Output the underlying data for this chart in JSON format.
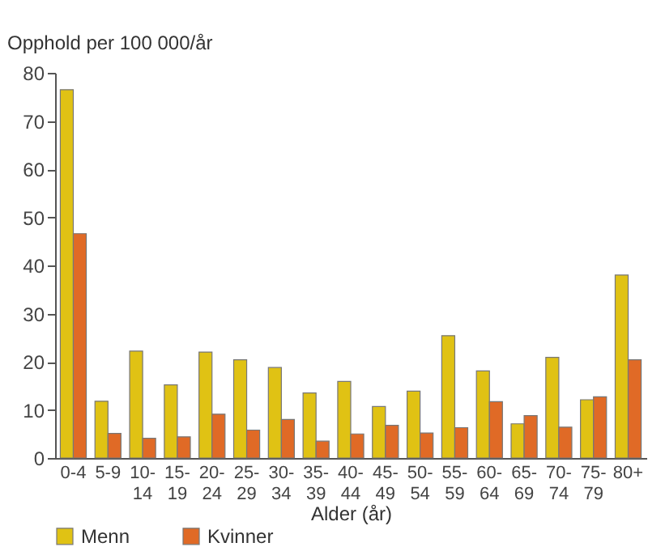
{
  "chart_data": {
    "type": "bar",
    "xlabel": "Alder (år)",
    "ylabel": "Opphold per 100 000/år",
    "categories": [
      "0-4",
      "5-9",
      "10-\n14",
      "15-\n19",
      "20-\n24",
      "25-\n29",
      "30-\n34",
      "35-\n39",
      "40-\n44",
      "45-\n49",
      "50-\n54",
      "55-\n59",
      "60-\n64",
      "65-\n69",
      "70-\n74",
      "75-\n79",
      "80+"
    ],
    "series": [
      {
        "name": "Menn",
        "color": "#e0c214",
        "values": [
          76.5,
          11.8,
          22.2,
          15.2,
          22,
          20.4,
          18.8,
          13.5,
          15.9,
          10.7,
          13.9,
          25.4,
          18.1,
          7.1,
          20.9,
          12.1,
          38
        ]
      },
      {
        "name": "Kvinner",
        "color": "#e06a26",
        "values": [
          46.6,
          5.1,
          4.1,
          4.4,
          9.1,
          5.8,
          8,
          3.5,
          5,
          6.8,
          5.2,
          6.3,
          11.7,
          8.8,
          6.4,
          12.7,
          20.4
        ]
      }
    ],
    "ylim": [
      0,
      80
    ],
    "yticks": [
      0,
      10,
      20,
      30,
      40,
      50,
      60,
      70,
      80
    ],
    "grid": false,
    "legend": "bottom left"
  }
}
